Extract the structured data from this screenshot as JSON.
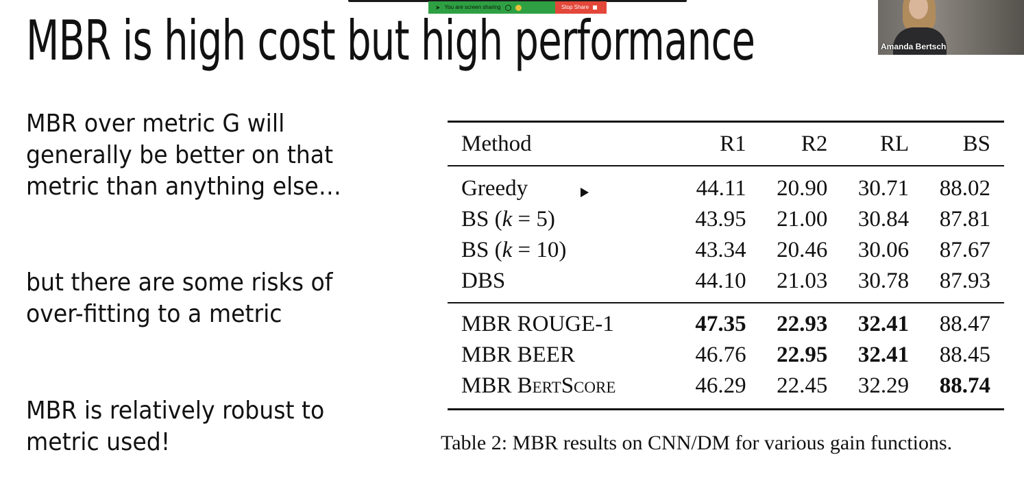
{
  "zoom_bar": {
    "sharing_text": "You are screen sharing",
    "stop_label": "Stop Share",
    "colors": {
      "sharing_bg": "#2ea043",
      "stop_bg": "#e3473a"
    }
  },
  "participant": {
    "name": "Amanda Bertsch"
  },
  "slide": {
    "title": "MBR is high cost but high performance",
    "bullets": [
      {
        "line1": "MBR over metric G will",
        "line2": "generally be better on that",
        "line3": "metric than anything else…"
      },
      {
        "line1": "but there are some risks of",
        "line2": "over-fitting to a metric"
      },
      {
        "line1": "MBR is relatively robust to",
        "line2": "metric used!"
      }
    ],
    "table": {
      "headers": [
        "Method",
        "R1",
        "R2",
        "RL",
        "BS"
      ],
      "baseline_rows": [
        {
          "method": "Greedy",
          "r1": "44.11",
          "r2": "20.90",
          "rl": "30.71",
          "bs": "88.02"
        },
        {
          "method_prefix": "BS (",
          "method_var": "k",
          "method_suffix": " = 5)",
          "r1": "43.95",
          "r2": "21.00",
          "rl": "30.84",
          "bs": "87.81"
        },
        {
          "method_prefix": "BS (",
          "method_var": "k",
          "method_suffix": " = 10)",
          "r1": "43.34",
          "r2": "20.46",
          "rl": "30.06",
          "bs": "87.67"
        },
        {
          "method": "DBS",
          "r1": "44.10",
          "r2": "21.03",
          "rl": "30.78",
          "bs": "87.93"
        }
      ],
      "mbr_rows": [
        {
          "method": "MBR ROUGE-1",
          "r1": "47.35",
          "r2": "22.93",
          "rl": "32.41",
          "bs": "88.47"
        },
        {
          "method": "MBR BEER",
          "r1": "46.76",
          "r2": "22.95",
          "rl": "32.41",
          "bs": "88.45"
        },
        {
          "method_prefix": "MBR ",
          "method_sc": "BertScore",
          "r1": "46.29",
          "r2": "22.45",
          "rl": "32.29",
          "bs": "88.74"
        }
      ],
      "caption": "Table 2: MBR results on CNN/DM for various gain functions."
    }
  }
}
